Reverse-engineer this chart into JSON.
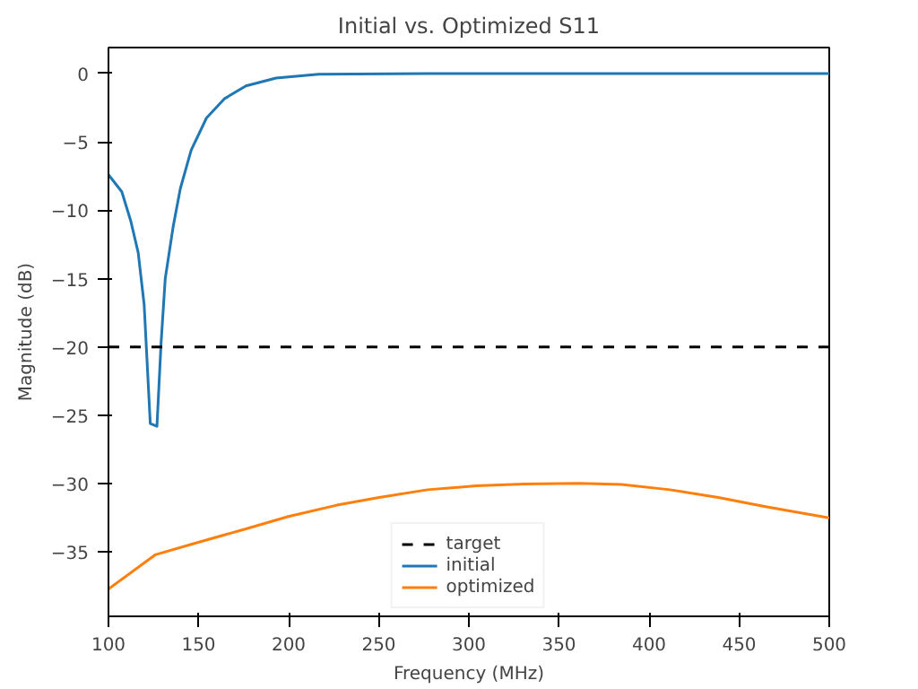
{
  "chart_data": {
    "type": "line",
    "title": "Initial vs. Optimized S11",
    "xlabel": "Frequency (MHz)",
    "ylabel": "Magnitude (dB)",
    "xlim": [
      100,
      500
    ],
    "ylim": [
      -39.7,
      1.9
    ],
    "xticks": [
      100,
      150,
      200,
      250,
      300,
      350,
      400,
      450,
      500
    ],
    "yticks": [
      -35,
      -30,
      -25,
      -20,
      -15,
      -10,
      -5,
      0
    ],
    "grid": false,
    "legend": "bottom",
    "line_style": "solid",
    "marker": "none",
    "ref_lines": [
      {
        "axis": "y",
        "value": -20,
        "label": "target",
        "color": "#000000",
        "line_style": "dashed"
      }
    ],
    "series": [
      {
        "name": "initial",
        "color": "#1f77b4",
        "x": [
          100,
          107.4,
          112.4,
          116.5,
          119.8,
          123.2,
          126.9,
          129.2,
          131.5,
          135.9,
          139.9,
          145.9,
          154.4,
          164.5,
          176.3,
          193,
          216.6,
          277,
          500
        ],
        "values": [
          -7.4,
          -8.65,
          -10.8,
          -13.1,
          -16.9,
          -25.6,
          -25.8,
          -19.7,
          -15,
          -11.2,
          -8.4,
          -5.6,
          -3.25,
          -1.83,
          -0.9,
          -0.33,
          -0.05,
          0,
          0
        ]
      },
      {
        "name": "optimized",
        "color": "#ff7f0e",
        "x": [
          100,
          125.9,
          149.4,
          176.3,
          199.8,
          226.7,
          250.2,
          277.1,
          304,
          330.8,
          361,
          384.7,
          411.5,
          438.4,
          465.3,
          500
        ],
        "values": [
          -37.7,
          -35.2,
          -34.3,
          -33.3,
          -32.4,
          -31.57,
          -31.0,
          -30.44,
          -30.16,
          -30.02,
          -29.97,
          -30.06,
          -30.44,
          -31.0,
          -31.7,
          -32.5
        ]
      }
    ]
  }
}
